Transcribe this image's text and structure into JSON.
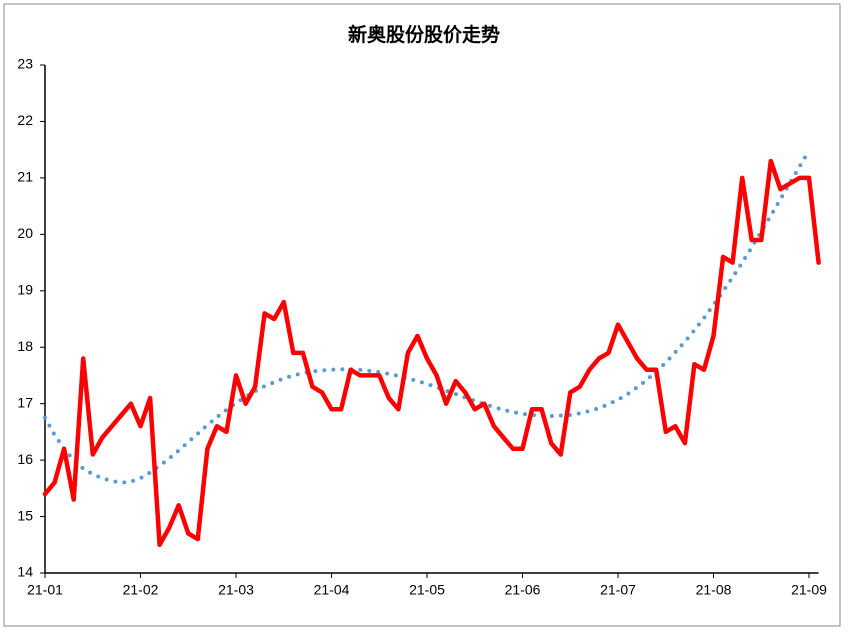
{
  "chart_data": {
    "type": "line",
    "title": "新奥股份股价走势",
    "categories": [
      "21-01",
      null,
      null,
      null,
      null,
      null,
      null,
      null,
      null,
      null,
      "21-02",
      null,
      null,
      null,
      null,
      null,
      null,
      null,
      null,
      null,
      "21-03",
      null,
      null,
      null,
      null,
      null,
      null,
      null,
      null,
      null,
      "21-04",
      null,
      null,
      null,
      null,
      null,
      null,
      null,
      null,
      null,
      "21-05",
      null,
      null,
      null,
      null,
      null,
      null,
      null,
      null,
      null,
      "21-06",
      null,
      null,
      null,
      null,
      null,
      null,
      null,
      null,
      null,
      "21-07",
      null,
      null,
      null,
      null,
      null,
      null,
      null,
      null,
      null,
      "21-08",
      null,
      null,
      null,
      null,
      null,
      null,
      null,
      null,
      null,
      "21-09",
      null
    ],
    "series": [
      {
        "color": "#ff0000",
        "style": "solid",
        "values": [
          15.4,
          15.6,
          16.2,
          15.3,
          17.8,
          16.1,
          16.4,
          16.6,
          16.8,
          17.0,
          16.6,
          17.1,
          14.5,
          14.8,
          15.2,
          14.7,
          14.6,
          16.2,
          16.6,
          16.5,
          17.5,
          17.0,
          17.3,
          18.6,
          18.5,
          18.8,
          17.9,
          17.9,
          17.3,
          17.2,
          16.9,
          16.9,
          17.6,
          17.5,
          17.5,
          17.5,
          17.1,
          16.9,
          17.9,
          18.2,
          17.8,
          17.5,
          17.0,
          17.4,
          17.2,
          16.9,
          17.0,
          16.6,
          16.4,
          16.2,
          16.2,
          16.9,
          16.9,
          16.3,
          16.1,
          17.2,
          17.3,
          17.6,
          17.8,
          17.9,
          18.4,
          18.1,
          17.8,
          17.6,
          17.6,
          16.5,
          16.6,
          16.3,
          17.7,
          17.6,
          18.2,
          19.6,
          19.5,
          21.0,
          19.9,
          19.9,
          21.3,
          20.8,
          20.9,
          21.0,
          21.0,
          19.5
        ]
      },
      {
        "color": "#5b9bd5",
        "style": "dotted",
        "values": [
          16.75,
          16.45,
          16.2,
          16.0,
          15.85,
          15.75,
          15.68,
          15.63,
          15.6,
          15.62,
          15.68,
          15.78,
          15.9,
          16.03,
          16.17,
          16.32,
          16.47,
          16.62,
          16.76,
          16.89,
          17.01,
          17.12,
          17.22,
          17.31,
          17.38,
          17.45,
          17.5,
          17.54,
          17.57,
          17.59,
          17.6,
          17.61,
          17.61,
          17.6,
          17.58,
          17.56,
          17.53,
          17.49,
          17.45,
          17.4,
          17.35,
          17.29,
          17.23,
          17.17,
          17.11,
          17.05,
          16.99,
          16.94,
          16.89,
          16.85,
          16.82,
          16.8,
          16.79,
          16.78,
          16.79,
          16.8,
          16.83,
          16.87,
          16.92,
          16.99,
          17.07,
          17.17,
          17.29,
          17.42,
          17.57,
          17.73,
          17.91,
          18.1,
          18.3,
          18.52,
          18.75,
          18.99,
          19.24,
          19.5,
          19.77,
          20.05,
          20.33,
          20.62,
          20.91,
          21.2,
          21.48,
          null
        ]
      }
    ],
    "ylim": [
      14,
      23
    ],
    "yticks": [
      14,
      15,
      16,
      17,
      18,
      19,
      20,
      21,
      22,
      23
    ]
  }
}
